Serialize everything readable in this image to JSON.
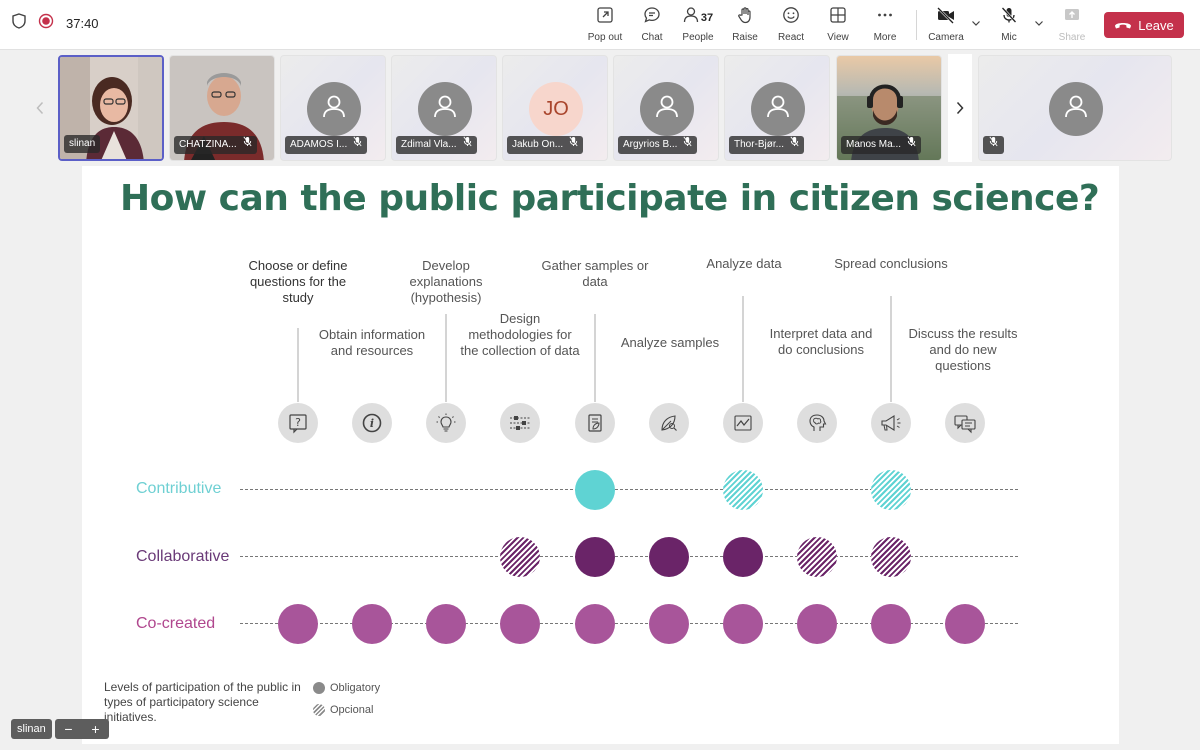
{
  "toolbar": {
    "timer": "37:40",
    "people_count": "37",
    "buttons": {
      "popout": "Pop out",
      "chat": "Chat",
      "people": "People",
      "raise": "Raise",
      "react": "React",
      "view": "View",
      "more": "More",
      "camera": "Camera",
      "mic": "Mic",
      "share": "Share"
    },
    "leave": "Leave",
    "leave_color": "#c4314b"
  },
  "participants": [
    {
      "name": "slinan",
      "type": "video"
    },
    {
      "name": "CHATZINA...",
      "type": "video"
    },
    {
      "name": "ADAMOS I...",
      "type": "avatar"
    },
    {
      "name": "Zdimal Vla...",
      "type": "avatar"
    },
    {
      "name": "Jakub On...",
      "type": "initials",
      "initials": "JO"
    },
    {
      "name": "Argyrios B...",
      "type": "avatar"
    },
    {
      "name": "Thor-Bjør...",
      "type": "avatar"
    },
    {
      "name": "Manos Ma...",
      "type": "video"
    }
  ],
  "slide": {
    "title": "How can the public participate in citizen science?",
    "steps": [
      {
        "label": "Choose or define questions for the study",
        "icon": "question-icon"
      },
      {
        "label": "Obtain information and resources",
        "icon": "info-icon"
      },
      {
        "label": "Develop explanations (hypothesis)",
        "icon": "lightbulb-icon"
      },
      {
        "label": "Design methodologies for the collection of data",
        "icon": "sliders-icon"
      },
      {
        "label": "Gather samples or data",
        "icon": "clipboard-icon"
      },
      {
        "label": "Analyze samples",
        "icon": "leaf-magnifier-icon"
      },
      {
        "label": "Analyze data",
        "icon": "line-chart-icon"
      },
      {
        "label": "Interpret data and do conclusions",
        "icon": "brain-head-icon"
      },
      {
        "label": "Spread conclusions",
        "icon": "megaphone-icon"
      },
      {
        "label": "Discuss the results and do new questions",
        "icon": "speech-bubbles-icon"
      }
    ],
    "rows": [
      {
        "label": "Contributive",
        "color": "#5fd3d3",
        "marks": [
          "none",
          "none",
          "none",
          "none",
          "obligatory",
          "none",
          "optional",
          "none",
          "optional",
          "none"
        ]
      },
      {
        "label": "Collaborative",
        "color": "#6a2468",
        "marks": [
          "none",
          "none",
          "none",
          "optional",
          "obligatory",
          "obligatory",
          "obligatory",
          "optional",
          "optional",
          "none"
        ]
      },
      {
        "label": "Co-created",
        "color": "#a8559a",
        "marks": [
          "obligatory",
          "obligatory",
          "obligatory",
          "obligatory",
          "obligatory",
          "obligatory",
          "obligatory",
          "obligatory",
          "obligatory",
          "obligatory"
        ]
      }
    ],
    "legend": {
      "caption": "Levels of participation of the public in types of participatory science initiatives.",
      "obligatory": "Obligatory",
      "optional": "Opcional"
    }
  },
  "selfview": {
    "name": "slinan",
    "zoom_out": "−",
    "zoom_in": "+"
  }
}
